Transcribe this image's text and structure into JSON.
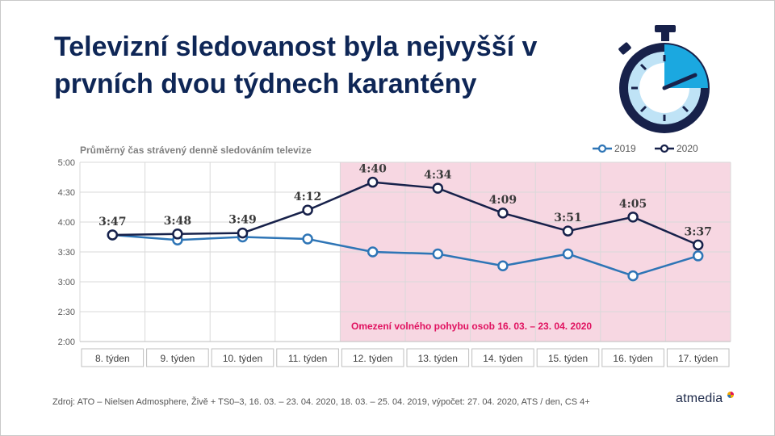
{
  "title": "Televizní sledovanost byla nejvyšší v prvních dvou týdnech karantény",
  "source": "Zdroj: ATO  – Nielsen Admosphere, Živě + TS0–3, 16. 03. – 23. 04. 2020, 18. 03. – 25. 04. 2019, výpočet:  27. 04. 2020, ATS  / den, CS 4+",
  "brand": "atmedia",
  "chart_data": {
    "type": "line",
    "subtitle": "Průměrný čas strávený denně sledováním televize",
    "categories": [
      "8. týden",
      "9. týden",
      "10. týden",
      "11. týden",
      "12. týden",
      "13. týden",
      "14. týden",
      "15. týden",
      "16. týden",
      "17. týden"
    ],
    "y_ticks": [
      "5:00",
      "4:30",
      "4:00",
      "3:30",
      "3:00",
      "2:30",
      "2:00"
    ],
    "ylim_minutes": [
      120,
      300
    ],
    "y_tick_step_minutes": 30,
    "grid": true,
    "legend_position": "top-right",
    "series": [
      {
        "name": "2019",
        "color": "#2e75b6",
        "values_minutes": [
          227,
          222,
          225,
          223,
          210,
          208,
          196,
          208,
          186,
          206
        ]
      },
      {
        "name": "2020",
        "color": "#17214a",
        "values_minutes": [
          227,
          228,
          229,
          252,
          280,
          274,
          249,
          231,
          245,
          217
        ],
        "data_labels": [
          "3:47",
          "3:48",
          "3:49",
          "4:12",
          "4:40",
          "4:34",
          "4:09",
          "3:51",
          "4:05",
          "3:37"
        ]
      }
    ],
    "highlight": {
      "from_category": "12. týden",
      "to_category": "17. týden",
      "color": "#f7d7e2",
      "label": "Omezení volného pohybu osob  16. 03. – 23. 04. 2020",
      "label_color": "#e0115f"
    }
  }
}
